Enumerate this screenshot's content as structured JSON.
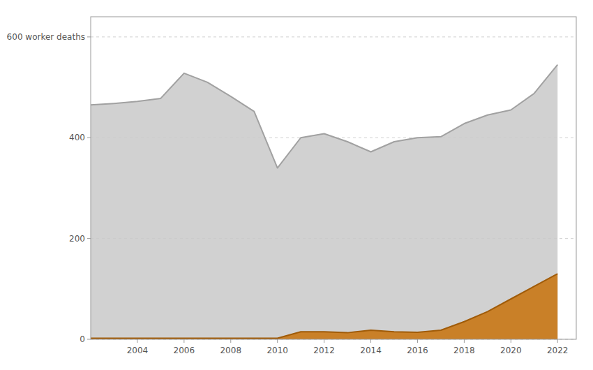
{
  "chart_data": {
    "type": "area",
    "x": [
      2002,
      2003,
      2004,
      2005,
      2006,
      2007,
      2008,
      2009,
      2010,
      2011,
      2012,
      2013,
      2014,
      2015,
      2016,
      2017,
      2018,
      2019,
      2020,
      2021,
      2022
    ],
    "series": [
      {
        "color": "#c9c9c9",
        "values": [
          465,
          468,
          472,
          478,
          528,
          510,
          482,
          452,
          340,
          400,
          408,
          392,
          372,
          392,
          400,
          402,
          428,
          445,
          455,
          488,
          545
        ]
      },
      {
        "color": "#c8720a",
        "values": [
          2,
          2,
          2,
          2,
          2,
          2,
          2,
          2,
          2,
          15,
          15,
          13,
          18,
          15,
          14,
          18,
          35,
          55,
          80,
          105,
          130
        ]
      }
    ],
    "stacked": false,
    "xlim": [
      2002.0,
      2022.8
    ],
    "xticks": [
      2004,
      2006,
      2008,
      2010,
      2012,
      2014,
      2016,
      2018,
      2020,
      2022
    ],
    "ylim": [
      0,
      640
    ],
    "yticks": [
      0,
      200,
      400,
      {
        "value": 600,
        "label": "600 worker deaths"
      }
    ],
    "grid": true
  }
}
